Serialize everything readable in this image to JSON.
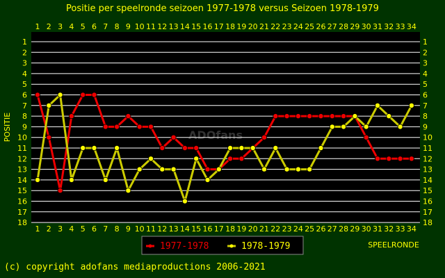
{
  "chart_data": {
    "type": "line",
    "title": "Positie per speelronde seizoen 1977-1978 versus Seizoen 1978-1979",
    "xlabel": "SPEELRONDE",
    "ylabel": "POSITIE",
    "x": [
      1,
      2,
      3,
      4,
      5,
      6,
      7,
      8,
      9,
      10,
      11,
      12,
      13,
      14,
      15,
      16,
      17,
      18,
      19,
      20,
      21,
      22,
      23,
      24,
      25,
      26,
      27,
      28,
      29,
      30,
      31,
      32,
      33,
      34
    ],
    "xlim": [
      1,
      34
    ],
    "ylim": [
      1,
      18
    ],
    "y_inverted": true,
    "grid": true,
    "legend_position": "bottom-left",
    "watermark": "ADOfans",
    "series": [
      {
        "name": "1977-1978",
        "color": "#ee0000",
        "values": [
          6,
          10,
          15,
          8,
          6,
          6,
          9,
          9,
          8,
          9,
          9,
          11,
          10,
          11,
          11,
          13,
          13,
          12,
          12,
          11,
          10,
          8,
          8,
          8,
          8,
          8,
          8,
          8,
          8,
          10,
          12,
          12,
          12,
          12
        ]
      },
      {
        "name": "1978-1979",
        "color": "#ffff00",
        "values": [
          14,
          7,
          6,
          14,
          11,
          11,
          14,
          11,
          15,
          13,
          12,
          13,
          13,
          16,
          12,
          14,
          13,
          11,
          11,
          11,
          13,
          11,
          13,
          13,
          13,
          11,
          9,
          9,
          8,
          9,
          7,
          8,
          9,
          7
        ]
      }
    ],
    "colors": {
      "background": "#003300",
      "grid": "#ffffff",
      "text": "#ffff00",
      "line_2": "#cccc00"
    }
  },
  "footer": {
    "copyright": "(c) copyright adofans mediaproductions 2006-2021"
  }
}
